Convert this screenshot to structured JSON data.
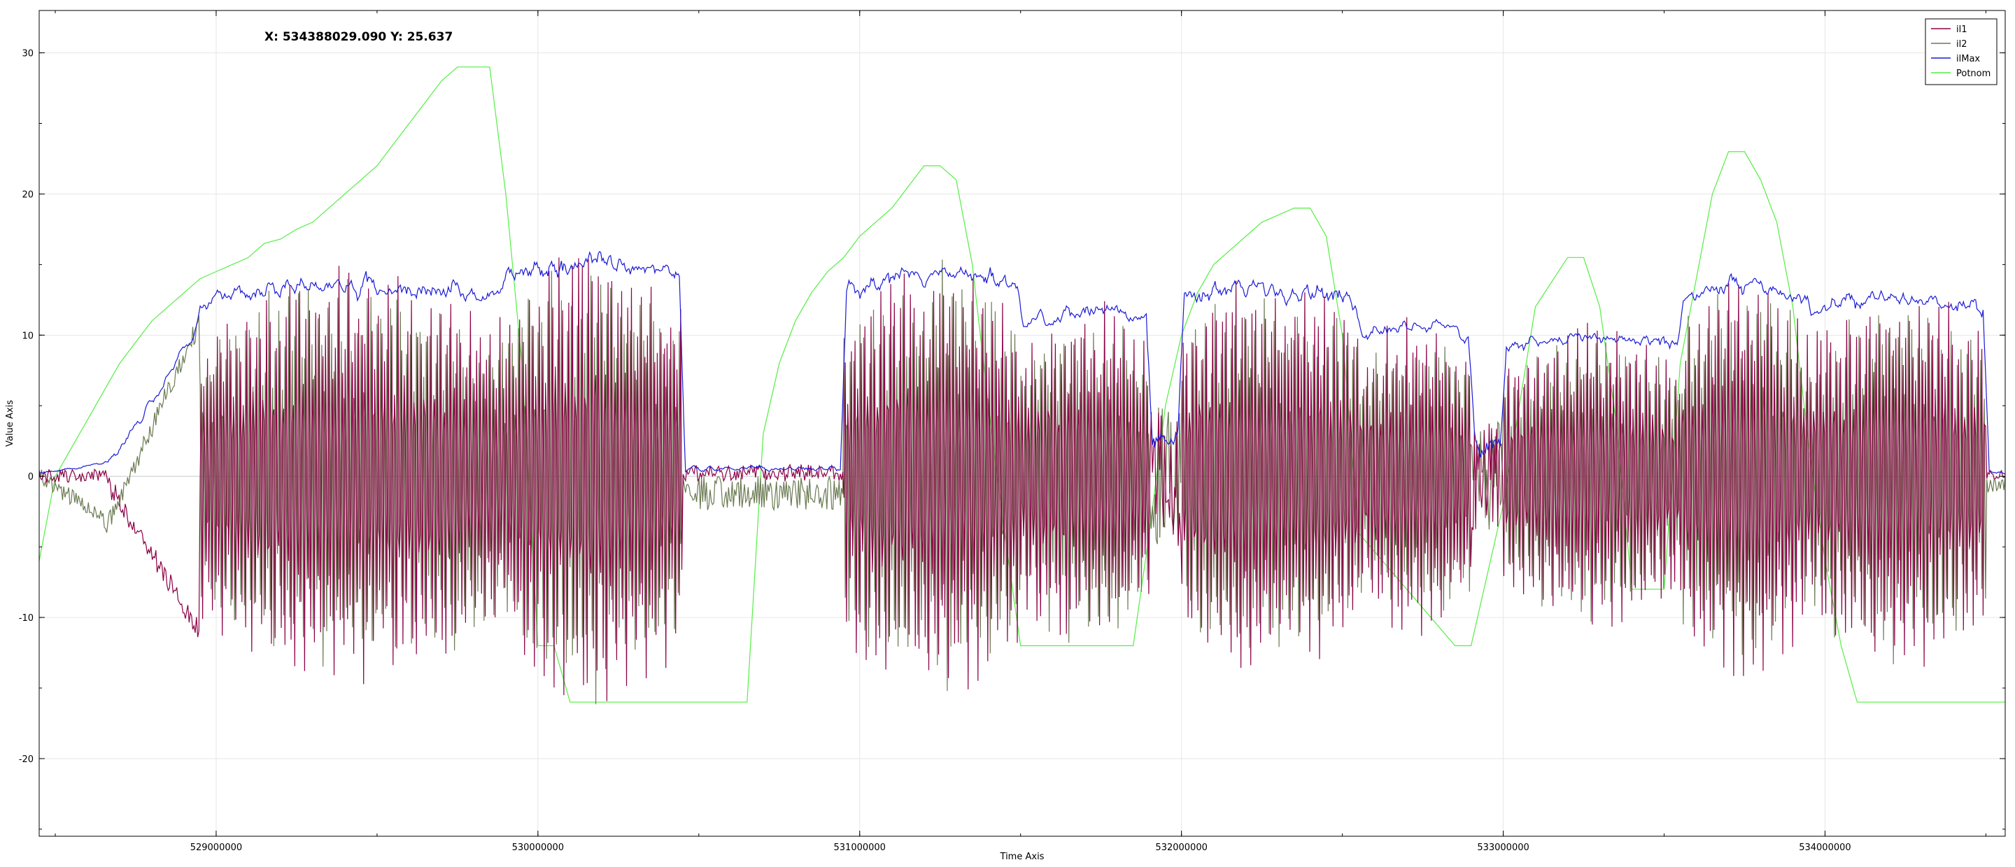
{
  "readout": "X: 534388029.090 Y: 25.637",
  "chart_data": {
    "type": "line",
    "xlabel": "Time Axis",
    "ylabel": "Value Axis",
    "xlim": [
      528450000,
      534560000
    ],
    "ylim": [
      -25.5,
      33
    ],
    "x_ticks": [
      {
        "value": 529000000,
        "label": "529000000"
      },
      {
        "value": 530000000,
        "label": "530000000"
      },
      {
        "value": 531000000,
        "label": "531000000"
      },
      {
        "value": 532000000,
        "label": "532000000"
      },
      {
        "value": 533000000,
        "label": "533000000"
      },
      {
        "value": 534000000,
        "label": "534000000"
      }
    ],
    "y_ticks": [
      {
        "value": 30,
        "label": "30"
      },
      {
        "value": 20,
        "label": "20"
      },
      {
        "value": 10,
        "label": "10"
      },
      {
        "value": 0,
        "label": "0"
      },
      {
        "value": -10,
        "label": "-10"
      },
      {
        "value": -20,
        "label": "-20"
      }
    ],
    "grid": true,
    "legend_position": "top-right",
    "segments": [
      {
        "x0": 528450000,
        "x1": 528650000,
        "mode": "ramp",
        "c0": 0,
        "c1": 0
      },
      {
        "x0": 528650000,
        "x1": 528950000,
        "mode": "split",
        "c0": -11,
        "c1": 11
      },
      {
        "x0": 528950000,
        "x1": 529900000,
        "mode": "osc",
        "a": 15
      },
      {
        "x0": 529900000,
        "x1": 530450000,
        "mode": "osc",
        "a": 17
      },
      {
        "x0": 530450000,
        "x1": 530950000,
        "mode": "low",
        "a": 1.2
      },
      {
        "x0": 530950000,
        "x1": 531500000,
        "mode": "osc",
        "a": 16
      },
      {
        "x0": 531500000,
        "x1": 531900000,
        "mode": "osc",
        "a": 13
      },
      {
        "x0": 531900000,
        "x1": 532000000,
        "mode": "dip",
        "a": 5
      },
      {
        "x0": 532000000,
        "x1": 532550000,
        "mode": "osc",
        "a": 15
      },
      {
        "x0": 532550000,
        "x1": 532900000,
        "mode": "osc",
        "a": 12
      },
      {
        "x0": 532900000,
        "x1": 533000000,
        "mode": "dip",
        "a": 4
      },
      {
        "x0": 533000000,
        "x1": 533550000,
        "mode": "osc",
        "a": 11
      },
      {
        "x0": 533550000,
        "x1": 533950000,
        "mode": "osc",
        "a": 15
      },
      {
        "x0": 533950000,
        "x1": 534500000,
        "mode": "osc",
        "a": 14
      },
      {
        "x0": 534500000,
        "x1": 534560000,
        "mode": "low",
        "a": 0.6
      }
    ],
    "series": [
      {
        "name": "il1",
        "color": "#8b0045",
        "role": "phaseA"
      },
      {
        "name": "il2",
        "color": "#6a7a52",
        "role": "phaseB"
      },
      {
        "name": "ilMax",
        "color": "#1a1ad6",
        "role": "envelope"
      },
      {
        "name": "Potnom",
        "color": "#55ee44",
        "role": "step",
        "x": [
          528450000,
          528500000,
          528550000,
          528600000,
          528650000,
          528700000,
          528750000,
          528800000,
          528850000,
          528900000,
          528950000,
          529000000,
          529050000,
          529100000,
          529150000,
          529200000,
          529250000,
          529300000,
          529350000,
          529400000,
          529450000,
          529500000,
          529550000,
          529600000,
          529650000,
          529700000,
          529750000,
          529800000,
          529850000,
          529900000,
          529950000,
          530000000,
          530050000,
          530100000,
          530650000,
          530700000,
          530750000,
          530800000,
          530850000,
          530900000,
          530950000,
          531000000,
          531050000,
          531100000,
          531150000,
          531200000,
          531250000,
          531300000,
          531350000,
          531400000,
          531450000,
          531500000,
          531550000,
          531850000,
          531900000,
          531950000,
          532000000,
          532050000,
          532100000,
          532200000,
          532250000,
          532350000,
          532400000,
          532450000,
          532500000,
          532550000,
          532850000,
          532900000,
          532950000,
          533000000,
          533050000,
          533100000,
          533200000,
          533250000,
          533300000,
          533350000,
          533400000,
          533500000,
          533550000,
          533600000,
          533650000,
          533700000,
          533750000,
          533800000,
          533850000,
          533900000,
          533950000,
          534000000,
          534050000,
          534100000,
          534150000,
          534400000,
          534560000
        ],
        "values": [
          -6,
          0,
          2,
          4,
          6,
          8,
          9.5,
          11,
          12,
          13,
          14,
          14.5,
          15,
          15.5,
          16.5,
          16.8,
          17.5,
          18,
          19,
          20,
          21,
          22,
          23.5,
          25,
          26.5,
          28,
          29,
          29,
          29,
          20,
          8,
          -12,
          -12,
          -16,
          -16,
          3,
          8,
          11,
          13,
          14.5,
          15.5,
          17,
          18,
          19,
          20.5,
          22,
          22,
          21,
          15,
          5,
          -4,
          -12,
          -12,
          -12,
          -4,
          5,
          10,
          13,
          15,
          17,
          18,
          19,
          19,
          17,
          10,
          -4,
          -12,
          -12,
          -7,
          -2,
          5,
          12,
          15.5,
          15.5,
          12,
          4,
          -8,
          -8,
          8,
          14,
          20,
          23,
          23,
          21,
          18,
          12,
          2,
          -6,
          -12,
          -16,
          -16,
          -16,
          -16
        ]
      }
    ]
  }
}
